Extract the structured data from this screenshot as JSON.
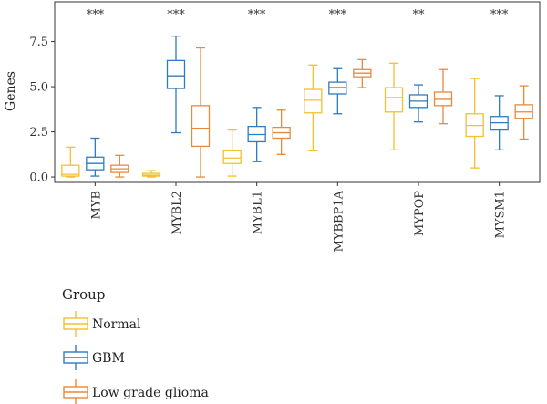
{
  "chart_data": {
    "type": "box",
    "ylabel": "Genes",
    "ylim": [
      -0.3,
      9.7
    ],
    "yticks": [
      0.0,
      2.5,
      5.0,
      7.5
    ],
    "ytick_labels": [
      "0.0",
      "2.5",
      "5.0",
      "7.5"
    ],
    "grid": false,
    "categories": [
      "MYB",
      "MYBL2",
      "MYBL1",
      "MYBBP1A",
      "MYPOP",
      "MYSM1"
    ],
    "significance": [
      "***",
      "***",
      "***",
      "***",
      "**",
      "***"
    ],
    "legend": {
      "title": "Group",
      "placement": "bottom-left"
    },
    "series": [
      {
        "name": "Normal",
        "color": "#F2C12E",
        "boxes": [
          {
            "min": 0.0,
            "q1": 0.05,
            "median": 0.15,
            "q3": 0.65,
            "max": 1.65
          },
          {
            "min": 0.0,
            "q1": 0.05,
            "median": 0.1,
            "q3": 0.2,
            "max": 0.35
          },
          {
            "min": 0.05,
            "q1": 0.75,
            "median": 1.05,
            "q3": 1.45,
            "max": 2.6
          },
          {
            "min": 1.45,
            "q1": 3.55,
            "median": 4.25,
            "q3": 4.85,
            "max": 6.2
          },
          {
            "min": 1.5,
            "q1": 3.6,
            "median": 4.4,
            "q3": 4.95,
            "max": 6.3
          },
          {
            "min": 0.5,
            "q1": 2.25,
            "median": 2.85,
            "q3": 3.5,
            "max": 5.45
          }
        ]
      },
      {
        "name": "GBM",
        "color": "#2E7BBF",
        "boxes": [
          {
            "min": 0.05,
            "q1": 0.4,
            "median": 0.75,
            "q3": 1.1,
            "max": 2.15
          },
          {
            "min": 2.45,
            "q1": 4.9,
            "median": 5.6,
            "q3": 6.45,
            "max": 7.8
          },
          {
            "min": 0.85,
            "q1": 1.95,
            "median": 2.35,
            "q3": 2.8,
            "max": 3.85
          },
          {
            "min": 3.5,
            "q1": 4.6,
            "median": 4.95,
            "q3": 5.25,
            "max": 6.0
          },
          {
            "min": 3.05,
            "q1": 3.85,
            "median": 4.2,
            "q3": 4.55,
            "max": 5.1
          },
          {
            "min": 1.5,
            "q1": 2.6,
            "median": 3.0,
            "q3": 3.35,
            "max": 4.5
          }
        ]
      },
      {
        "name": "Low grade glioma",
        "color": "#E8893C",
        "boxes": [
          {
            "min": 0.0,
            "q1": 0.25,
            "median": 0.45,
            "q3": 0.65,
            "max": 1.2
          },
          {
            "min": 0.0,
            "q1": 1.7,
            "median": 2.7,
            "q3": 3.95,
            "max": 7.15
          },
          {
            "min": 1.25,
            "q1": 2.15,
            "median": 2.45,
            "q3": 2.75,
            "max": 3.7
          },
          {
            "min": 4.95,
            "q1": 5.55,
            "median": 5.75,
            "q3": 5.95,
            "max": 6.5
          },
          {
            "min": 2.95,
            "q1": 3.95,
            "median": 4.3,
            "q3": 4.7,
            "max": 5.95
          },
          {
            "min": 2.1,
            "q1": 3.25,
            "median": 3.6,
            "q3": 4.0,
            "max": 5.05
          }
        ]
      }
    ]
  }
}
